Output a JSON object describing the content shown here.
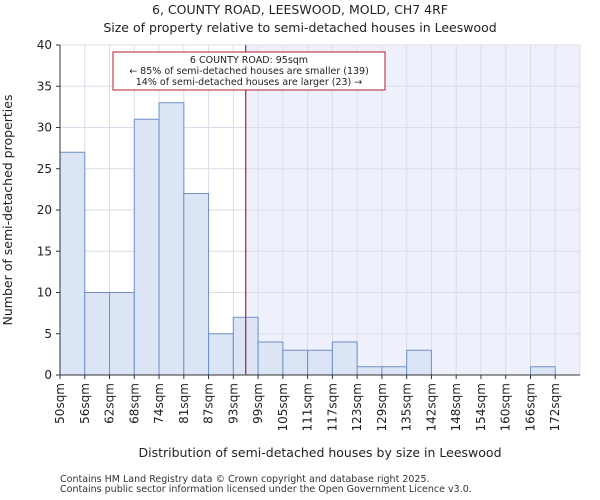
{
  "chart_data": {
    "type": "bar",
    "title": "6, COUNTY ROAD, LEESWOOD, MOLD, CH7 4RF",
    "subtitle": "Size of property relative to semi-detached houses in Leeswood",
    "xlabel": "Distribution of semi-detached houses by size in Leeswood",
    "ylabel": "Number of semi-detached properties",
    "ylim": [
      0,
      40
    ],
    "yticks": [
      0,
      5,
      10,
      15,
      20,
      25,
      30,
      35,
      40
    ],
    "grid": true,
    "categories": [
      "50sqm",
      "56sqm",
      "62sqm",
      "68sqm",
      "74sqm",
      "81sqm",
      "87sqm",
      "93sqm",
      "99sqm",
      "105sqm",
      "111sqm",
      "117sqm",
      "123sqm",
      "129sqm",
      "135sqm",
      "142sqm",
      "148sqm",
      "154sqm",
      "160sqm",
      "166sqm",
      "172sqm"
    ],
    "values": [
      27,
      10,
      10,
      31,
      33,
      22,
      5,
      7,
      4,
      3,
      3,
      4,
      1,
      1,
      3,
      0,
      0,
      0,
      0,
      1,
      0
    ],
    "marker": {
      "value": 95,
      "unit": "sqm",
      "color": "#b01f2e",
      "annotation": [
        "6 COUNTY ROAD: 95sqm",
        "← 85% of semi-detached houses are smaller (139)",
        "14% of semi-detached houses are larger (23) →"
      ]
    },
    "colors": {
      "bar_fill": "#dbe5f5",
      "bar_stroke": "#7090c8",
      "highlight_bg": "#eef1fb",
      "grid": "#d9deea"
    }
  },
  "footer": {
    "line1": "Contains HM Land Registry data © Crown copyright and database right 2025.",
    "line2": "Contains public sector information licensed under the Open Government Licence v3.0."
  }
}
